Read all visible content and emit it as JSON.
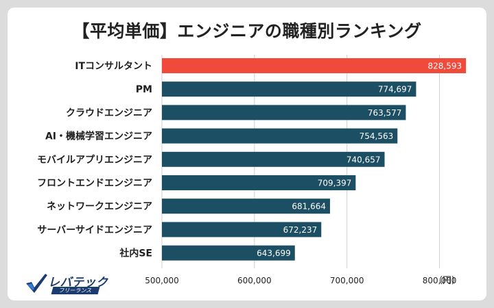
{
  "chart_data": {
    "type": "bar",
    "orientation": "horizontal",
    "title": "【平均単価】エンジニアの職種別ランキング",
    "unit": "（円）",
    "categories": [
      "ITコンサルタント",
      "PM",
      "クラウドエンジニア",
      "AI・機械学習エンジニア",
      "モバイルアプリエンジニア",
      "フロントエンドエンジニア",
      "ネットワークエンジニア",
      "サーバーサイドエンジニア",
      "社内SE"
    ],
    "values": [
      828593,
      774697,
      763577,
      754563,
      740657,
      709397,
      681664,
      672237,
      643699
    ],
    "value_labels": [
      "828,593",
      "774,697",
      "763,577",
      "754,563",
      "740,657",
      "709,397",
      "681,664",
      "672,237",
      "643,699"
    ],
    "xlim": [
      500000,
      850000
    ],
    "xticks": [
      500000,
      600000,
      700000,
      800000
    ],
    "xtick_labels": [
      "500,000",
      "600,000",
      "700,000",
      "800,000"
    ],
    "grid": true,
    "colors": {
      "highlight": "#f04a3a",
      "default": "#1c4f63",
      "grid": "#cfcfcf"
    }
  },
  "logo": {
    "main": "レバテック",
    "sub": "フリーランス"
  }
}
